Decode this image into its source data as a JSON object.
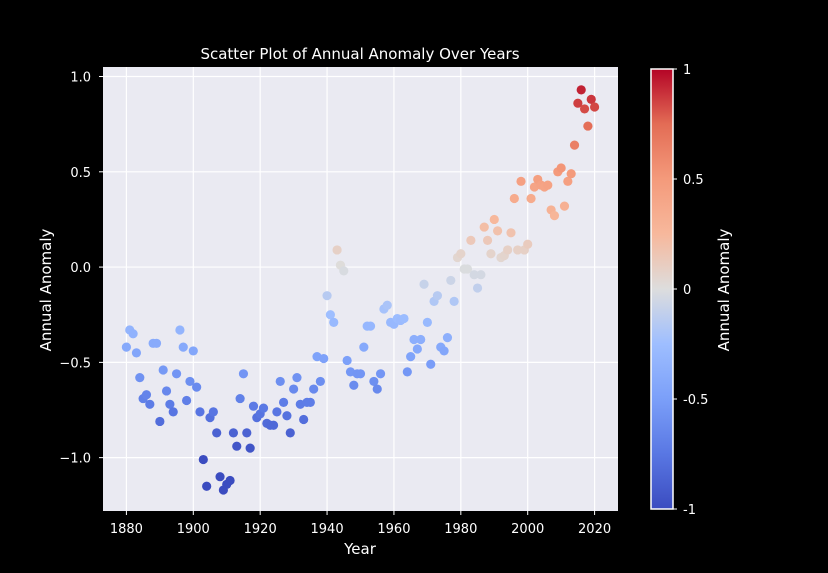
{
  "chart_data": {
    "type": "scatter",
    "title": "Scatter Plot of Annual Anomaly Over Years",
    "xlabel": "Year",
    "ylabel": "Annual Anomaly",
    "xlim": [
      1873,
      2027
    ],
    "ylim": [
      -1.28,
      1.05
    ],
    "xticks": [
      1880,
      1900,
      1920,
      1940,
      1960,
      1980,
      2000,
      2020
    ],
    "xtick_labels": [
      "1880",
      "1900",
      "1920",
      "1940",
      "1960",
      "1980",
      "2000",
      "2020"
    ],
    "yticks": [
      -1.0,
      -0.5,
      0.0,
      0.5,
      1.0
    ],
    "ytick_labels": [
      "−1.0",
      "−0.5",
      "0.0",
      "0.5",
      "1.0"
    ],
    "grid": true,
    "colormap": "coolwarm",
    "color_range": [
      -1,
      1
    ],
    "colorbar": {
      "label": "Annual Anomaly",
      "ticks": [
        -1,
        -0.5,
        0,
        0.5,
        1
      ],
      "tick_labels": [
        "-1",
        "-0.5",
        "0",
        "0.5",
        "1"
      ]
    },
    "colors": {
      "figure_background": "#000000",
      "plot_background": "#eaeaf2",
      "grid": "#ffffff",
      "text": "#ffffff"
    },
    "x": [
      1880,
      1881,
      1882,
      1883,
      1884,
      1885,
      1886,
      1887,
      1888,
      1889,
      1890,
      1891,
      1892,
      1893,
      1894,
      1895,
      1896,
      1897,
      1898,
      1899,
      1900,
      1901,
      1902,
      1903,
      1904,
      1905,
      1906,
      1907,
      1908,
      1909,
      1910,
      1911,
      1912,
      1913,
      1914,
      1915,
      1916,
      1917,
      1918,
      1919,
      1920,
      1921,
      1922,
      1923,
      1924,
      1925,
      1926,
      1927,
      1928,
      1929,
      1930,
      1931,
      1932,
      1933,
      1934,
      1935,
      1936,
      1937,
      1938,
      1939,
      1940,
      1941,
      1942,
      1943,
      1944,
      1945,
      1946,
      1947,
      1948,
      1949,
      1950,
      1951,
      1952,
      1953,
      1954,
      1955,
      1956,
      1957,
      1958,
      1959,
      1960,
      1961,
      1962,
      1963,
      1964,
      1965,
      1966,
      1967,
      1968,
      1969,
      1970,
      1971,
      1972,
      1973,
      1974,
      1975,
      1976,
      1977,
      1978,
      1979,
      1980,
      1981,
      1982,
      1983,
      1984,
      1985,
      1986,
      1987,
      1988,
      1989,
      1990,
      1991,
      1992,
      1993,
      1994,
      1995,
      1996,
      1997,
      1998,
      1999,
      2000,
      2001,
      2002,
      2003,
      2004,
      2005,
      2006,
      2007,
      2008,
      2009,
      2010,
      2011,
      2012,
      2013,
      2014,
      2015,
      2016,
      2017,
      2018,
      2019,
      2020
    ],
    "y": [
      -0.42,
      -0.33,
      -0.35,
      -0.45,
      -0.58,
      -0.69,
      -0.67,
      -0.72,
      -0.4,
      -0.4,
      -0.81,
      -0.54,
      -0.65,
      -0.72,
      -0.76,
      -0.56,
      -0.33,
      -0.42,
      -0.7,
      -0.6,
      -0.44,
      -0.63,
      -0.76,
      -1.01,
      -1.15,
      -0.79,
      -0.76,
      -0.87,
      -1.1,
      -1.17,
      -1.14,
      -1.12,
      -0.87,
      -0.94,
      -0.69,
      -0.56,
      -0.87,
      -0.95,
      -0.73,
      -0.79,
      -0.77,
      -0.74,
      -0.82,
      -0.83,
      -0.83,
      -0.76,
      -0.6,
      -0.71,
      -0.78,
      -0.87,
      -0.64,
      -0.58,
      -0.72,
      -0.8,
      -0.71,
      -0.71,
      -0.64,
      -0.47,
      -0.6,
      -0.48,
      -0.15,
      -0.25,
      -0.29,
      0.09,
      0.01,
      -0.02,
      -0.49,
      -0.55,
      -0.62,
      -0.56,
      -0.56,
      -0.42,
      -0.31,
      -0.31,
      -0.6,
      -0.64,
      -0.56,
      -0.22,
      -0.2,
      -0.29,
      -0.3,
      -0.27,
      -0.28,
      -0.27,
      -0.55,
      -0.47,
      -0.38,
      -0.43,
      -0.38,
      -0.09,
      -0.29,
      -0.51,
      -0.18,
      -0.15,
      -0.42,
      -0.44,
      -0.37,
      -0.07,
      -0.18,
      0.05,
      0.07,
      -0.01,
      -0.01,
      0.14,
      -0.04,
      -0.11,
      -0.04,
      0.21,
      0.14,
      0.07,
      0.25,
      0.19,
      0.05,
      0.06,
      0.09,
      0.18,
      0.36,
      0.09,
      0.45,
      0.09,
      0.12,
      0.36,
      0.42,
      0.46,
      0.43,
      0.42,
      0.43,
      0.3,
      0.27,
      0.5,
      0.52,
      0.32,
      0.45,
      0.49,
      0.64,
      0.86,
      0.93,
      0.83,
      0.74,
      0.88,
      0.84
    ]
  }
}
